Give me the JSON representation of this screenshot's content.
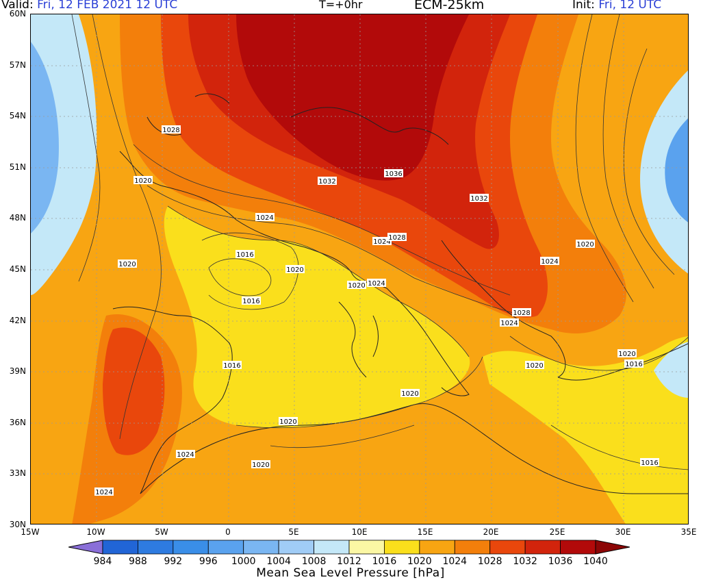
{
  "header": {
    "valid_label": "Valid:",
    "valid_value": "Fri, 12 FEB 2021  12 UTC",
    "timestep": "T=+0hr",
    "model": "ECM-25km",
    "init_label": "Init:",
    "init_value": "Fri, 12 UTC"
  },
  "axes": {
    "latitude_labels": [
      "60N",
      "57N",
      "54N",
      "51N",
      "48N",
      "45N",
      "42N",
      "39N",
      "36N",
      "33N",
      "30N"
    ],
    "longitude_labels": [
      "15W",
      "10W",
      "5W",
      "0",
      "5E",
      "10E",
      "15E",
      "20E",
      "25E",
      "30E",
      "35E"
    ]
  },
  "map": {
    "field": "mean sea level pressure",
    "projection": "lat-lon",
    "lon_range": [
      -15,
      35
    ],
    "lat_range": [
      30,
      60
    ],
    "grid": "dotted 5° lon / 3° lat",
    "contour_labels": [
      {
        "text": "1028"
      },
      {
        "text": "1020"
      },
      {
        "text": "1032"
      },
      {
        "text": "1036"
      },
      {
        "text": "1032"
      },
      {
        "text": "1024"
      },
      {
        "text": "1024"
      },
      {
        "text": "1028"
      },
      {
        "text": "1020"
      },
      {
        "text": "1016"
      },
      {
        "text": "1020"
      },
      {
        "text": "1016"
      },
      {
        "text": "1020"
      },
      {
        "text": "1024"
      },
      {
        "text": "1024"
      },
      {
        "text": "1020"
      },
      {
        "text": "1028"
      },
      {
        "text": "1024"
      },
      {
        "text": "1016"
      },
      {
        "text": "1020"
      },
      {
        "text": "1020"
      },
      {
        "text": "1016"
      },
      {
        "text": "1020"
      },
      {
        "text": "1020"
      },
      {
        "text": "1024"
      },
      {
        "text": "1020"
      },
      {
        "text": "1016"
      },
      {
        "text": "1024"
      }
    ]
  },
  "colorbar": {
    "title": "Mean Sea Level Pressure [hPa]",
    "ticks": [
      "984",
      "988",
      "992",
      "996",
      "1000",
      "1004",
      "1008",
      "1012",
      "1016",
      "1020",
      "1024",
      "1028",
      "1032",
      "1036",
      "1040"
    ],
    "colors": [
      "#2165d6",
      "#2e7be0",
      "#3a8ee8",
      "#5aa2ee",
      "#7ab6f2",
      "#a0ccf6",
      "#c4e8f8",
      "#fbf7a4",
      "#fadf1c",
      "#f8a512",
      "#f37f0b",
      "#e9470c",
      "#d2240c",
      "#b20a0a"
    ],
    "under_color": "#8a6fd8",
    "over_color": "#8c0606"
  }
}
